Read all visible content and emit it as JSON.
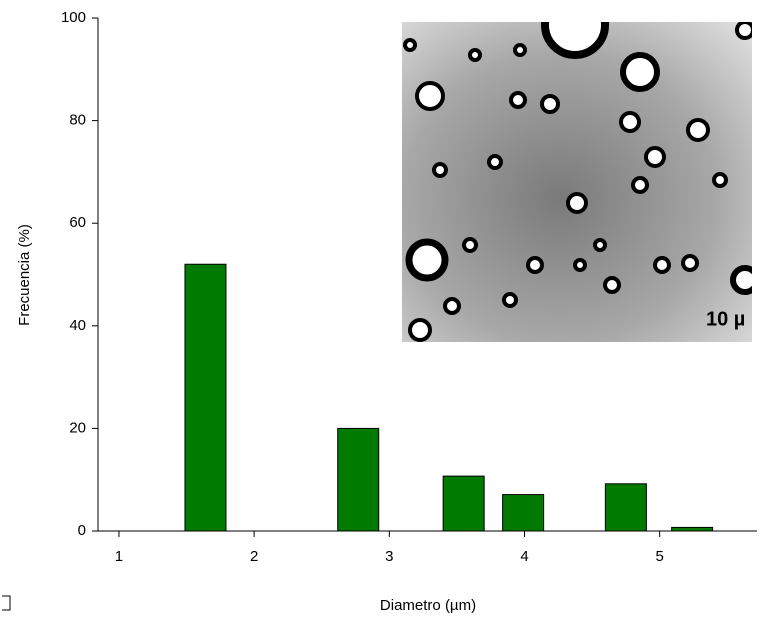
{
  "chart_data": {
    "type": "bar",
    "x_label": "Diametro (µm)",
    "y_label": "Frecuencia (%)",
    "x": [
      1.64,
      2.77,
      3.55,
      3.99,
      4.75,
      5.24
    ],
    "values": [
      52,
      20,
      10.7,
      7.1,
      9.2,
      0.7
    ],
    "color": "#007a00",
    "xlim": [
      0.845,
      5.72
    ],
    "xticks": [
      1,
      2,
      3,
      4,
      5
    ],
    "ylim": [
      0,
      100
    ],
    "yticks": [
      0,
      20,
      40,
      60,
      80,
      100
    ],
    "grid": false,
    "inset_label": "10 µ"
  }
}
